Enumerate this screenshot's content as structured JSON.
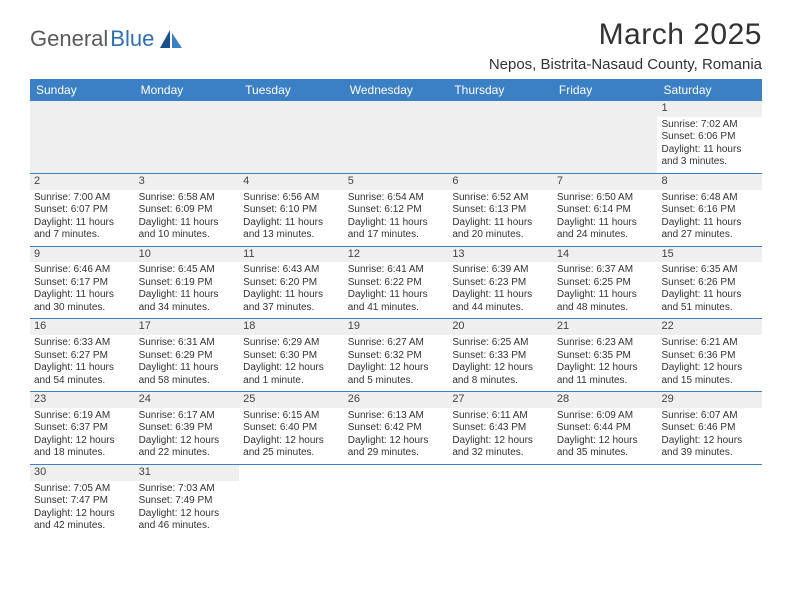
{
  "logo": {
    "part1": "General",
    "part2": "Blue"
  },
  "title": "March 2025",
  "location": "Nepos, Bistrita-Nasaud County, Romania",
  "colors": {
    "header_bg": "#3b7fc4",
    "row_divider": "#3b7fc4",
    "daynum_bg": "#efefef",
    "blank_bg": "#efefef",
    "text": "#333333"
  },
  "day_labels": [
    "Sunday",
    "Monday",
    "Tuesday",
    "Wednesday",
    "Thursday",
    "Friday",
    "Saturday"
  ],
  "weeks": [
    [
      null,
      null,
      null,
      null,
      null,
      null,
      {
        "n": "1",
        "sr": "Sunrise: 7:02 AM",
        "ss": "Sunset: 6:06 PM",
        "d1": "Daylight: 11 hours",
        "d2": "and 3 minutes."
      }
    ],
    [
      {
        "n": "2",
        "sr": "Sunrise: 7:00 AM",
        "ss": "Sunset: 6:07 PM",
        "d1": "Daylight: 11 hours",
        "d2": "and 7 minutes."
      },
      {
        "n": "3",
        "sr": "Sunrise: 6:58 AM",
        "ss": "Sunset: 6:09 PM",
        "d1": "Daylight: 11 hours",
        "d2": "and 10 minutes."
      },
      {
        "n": "4",
        "sr": "Sunrise: 6:56 AM",
        "ss": "Sunset: 6:10 PM",
        "d1": "Daylight: 11 hours",
        "d2": "and 13 minutes."
      },
      {
        "n": "5",
        "sr": "Sunrise: 6:54 AM",
        "ss": "Sunset: 6:12 PM",
        "d1": "Daylight: 11 hours",
        "d2": "and 17 minutes."
      },
      {
        "n": "6",
        "sr": "Sunrise: 6:52 AM",
        "ss": "Sunset: 6:13 PM",
        "d1": "Daylight: 11 hours",
        "d2": "and 20 minutes."
      },
      {
        "n": "7",
        "sr": "Sunrise: 6:50 AM",
        "ss": "Sunset: 6:14 PM",
        "d1": "Daylight: 11 hours",
        "d2": "and 24 minutes."
      },
      {
        "n": "8",
        "sr": "Sunrise: 6:48 AM",
        "ss": "Sunset: 6:16 PM",
        "d1": "Daylight: 11 hours",
        "d2": "and 27 minutes."
      }
    ],
    [
      {
        "n": "9",
        "sr": "Sunrise: 6:46 AM",
        "ss": "Sunset: 6:17 PM",
        "d1": "Daylight: 11 hours",
        "d2": "and 30 minutes."
      },
      {
        "n": "10",
        "sr": "Sunrise: 6:45 AM",
        "ss": "Sunset: 6:19 PM",
        "d1": "Daylight: 11 hours",
        "d2": "and 34 minutes."
      },
      {
        "n": "11",
        "sr": "Sunrise: 6:43 AM",
        "ss": "Sunset: 6:20 PM",
        "d1": "Daylight: 11 hours",
        "d2": "and 37 minutes."
      },
      {
        "n": "12",
        "sr": "Sunrise: 6:41 AM",
        "ss": "Sunset: 6:22 PM",
        "d1": "Daylight: 11 hours",
        "d2": "and 41 minutes."
      },
      {
        "n": "13",
        "sr": "Sunrise: 6:39 AM",
        "ss": "Sunset: 6:23 PM",
        "d1": "Daylight: 11 hours",
        "d2": "and 44 minutes."
      },
      {
        "n": "14",
        "sr": "Sunrise: 6:37 AM",
        "ss": "Sunset: 6:25 PM",
        "d1": "Daylight: 11 hours",
        "d2": "and 48 minutes."
      },
      {
        "n": "15",
        "sr": "Sunrise: 6:35 AM",
        "ss": "Sunset: 6:26 PM",
        "d1": "Daylight: 11 hours",
        "d2": "and 51 minutes."
      }
    ],
    [
      {
        "n": "16",
        "sr": "Sunrise: 6:33 AM",
        "ss": "Sunset: 6:27 PM",
        "d1": "Daylight: 11 hours",
        "d2": "and 54 minutes."
      },
      {
        "n": "17",
        "sr": "Sunrise: 6:31 AM",
        "ss": "Sunset: 6:29 PM",
        "d1": "Daylight: 11 hours",
        "d2": "and 58 minutes."
      },
      {
        "n": "18",
        "sr": "Sunrise: 6:29 AM",
        "ss": "Sunset: 6:30 PM",
        "d1": "Daylight: 12 hours",
        "d2": "and 1 minute."
      },
      {
        "n": "19",
        "sr": "Sunrise: 6:27 AM",
        "ss": "Sunset: 6:32 PM",
        "d1": "Daylight: 12 hours",
        "d2": "and 5 minutes."
      },
      {
        "n": "20",
        "sr": "Sunrise: 6:25 AM",
        "ss": "Sunset: 6:33 PM",
        "d1": "Daylight: 12 hours",
        "d2": "and 8 minutes."
      },
      {
        "n": "21",
        "sr": "Sunrise: 6:23 AM",
        "ss": "Sunset: 6:35 PM",
        "d1": "Daylight: 12 hours",
        "d2": "and 11 minutes."
      },
      {
        "n": "22",
        "sr": "Sunrise: 6:21 AM",
        "ss": "Sunset: 6:36 PM",
        "d1": "Daylight: 12 hours",
        "d2": "and 15 minutes."
      }
    ],
    [
      {
        "n": "23",
        "sr": "Sunrise: 6:19 AM",
        "ss": "Sunset: 6:37 PM",
        "d1": "Daylight: 12 hours",
        "d2": "and 18 minutes."
      },
      {
        "n": "24",
        "sr": "Sunrise: 6:17 AM",
        "ss": "Sunset: 6:39 PM",
        "d1": "Daylight: 12 hours",
        "d2": "and 22 minutes."
      },
      {
        "n": "25",
        "sr": "Sunrise: 6:15 AM",
        "ss": "Sunset: 6:40 PM",
        "d1": "Daylight: 12 hours",
        "d2": "and 25 minutes."
      },
      {
        "n": "26",
        "sr": "Sunrise: 6:13 AM",
        "ss": "Sunset: 6:42 PM",
        "d1": "Daylight: 12 hours",
        "d2": "and 29 minutes."
      },
      {
        "n": "27",
        "sr": "Sunrise: 6:11 AM",
        "ss": "Sunset: 6:43 PM",
        "d1": "Daylight: 12 hours",
        "d2": "and 32 minutes."
      },
      {
        "n": "28",
        "sr": "Sunrise: 6:09 AM",
        "ss": "Sunset: 6:44 PM",
        "d1": "Daylight: 12 hours",
        "d2": "and 35 minutes."
      },
      {
        "n": "29",
        "sr": "Sunrise: 6:07 AM",
        "ss": "Sunset: 6:46 PM",
        "d1": "Daylight: 12 hours",
        "d2": "and 39 minutes."
      }
    ],
    [
      {
        "n": "30",
        "sr": "Sunrise: 7:05 AM",
        "ss": "Sunset: 7:47 PM",
        "d1": "Daylight: 12 hours",
        "d2": "and 42 minutes."
      },
      {
        "n": "31",
        "sr": "Sunrise: 7:03 AM",
        "ss": "Sunset: 7:49 PM",
        "d1": "Daylight: 12 hours",
        "d2": "and 46 minutes."
      },
      null,
      null,
      null,
      null,
      null
    ]
  ]
}
